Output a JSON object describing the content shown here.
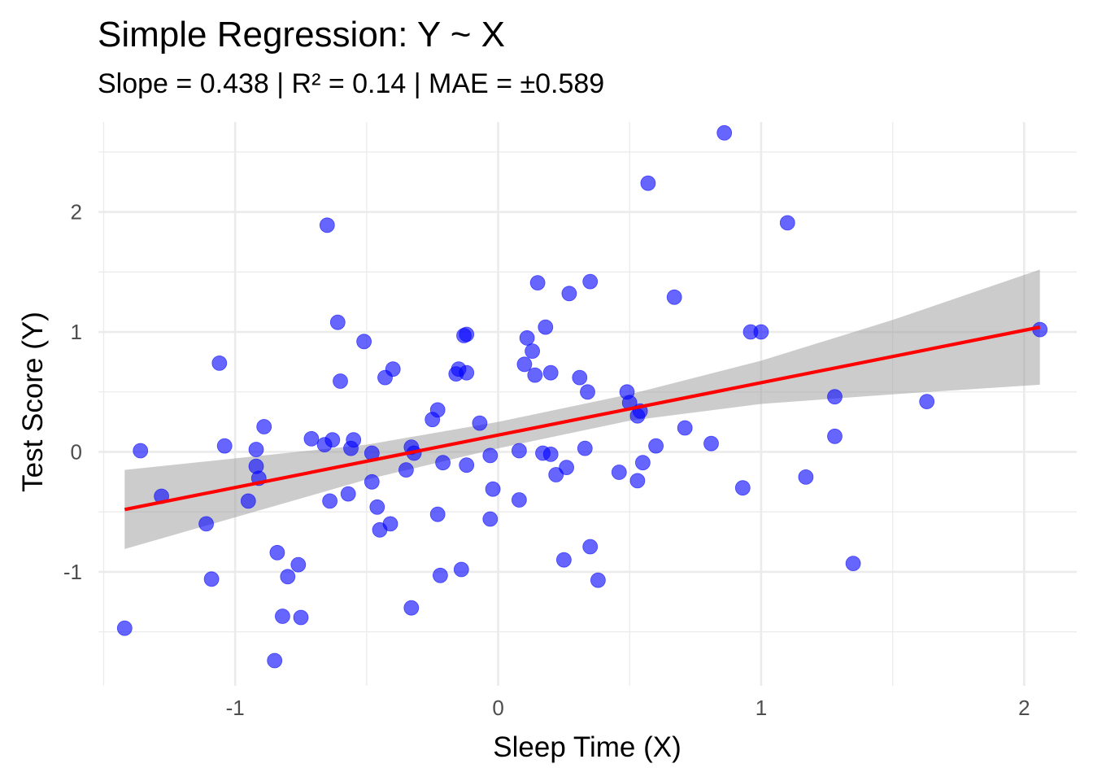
{
  "chart_data": {
    "type": "scatter",
    "title": "Simple Regression: Y ~ X",
    "subtitle": "Slope = 0.438 | R² = 0.14 | MAE = ±0.589",
    "xlabel": "Sleep Time (X)",
    "ylabel": "Test Score (Y)",
    "xlim": [
      -1.52,
      2.2
    ],
    "ylim": [
      -1.95,
      2.75
    ],
    "x_ticks": [
      -1,
      0,
      1,
      2
    ],
    "x_tick_labels": [
      "-1",
      "0",
      "1",
      "2"
    ],
    "y_ticks": [
      -1,
      0,
      1,
      2
    ],
    "y_tick_labels": [
      "-1",
      "0",
      "1",
      "2"
    ],
    "grid": true,
    "legend": "none",
    "colors": {
      "points": "#0000ff",
      "line": "#ff0000",
      "band": "#999999",
      "grid": "#ebebeb"
    },
    "regression": {
      "x": [
        -1.42,
        2.06
      ],
      "y": [
        -0.48,
        1.04
      ],
      "band_x": [
        -1.42,
        -0.5,
        0.0,
        0.5,
        1.0,
        1.5,
        2.06
      ],
      "band_lower": [
        -0.81,
        -0.23,
        0.03,
        0.26,
        0.4,
        0.48,
        0.56
      ],
      "band_upper": [
        -0.15,
        0.06,
        0.25,
        0.48,
        0.76,
        1.1,
        1.52
      ]
    },
    "points": [
      {
        "x": -1.42,
        "y": -1.47
      },
      {
        "x": -1.36,
        "y": 0.01
      },
      {
        "x": -1.28,
        "y": -0.37
      },
      {
        "x": -1.11,
        "y": -0.6
      },
      {
        "x": -1.09,
        "y": -1.06
      },
      {
        "x": -1.06,
        "y": 0.74
      },
      {
        "x": -1.04,
        "y": 0.05
      },
      {
        "x": -0.95,
        "y": -0.41
      },
      {
        "x": -0.92,
        "y": 0.02
      },
      {
        "x": -0.92,
        "y": -0.12
      },
      {
        "x": -0.91,
        "y": -0.22
      },
      {
        "x": -0.89,
        "y": 0.21
      },
      {
        "x": -0.85,
        "y": -1.74
      },
      {
        "x": -0.84,
        "y": -0.84
      },
      {
        "x": -0.82,
        "y": -1.37
      },
      {
        "x": -0.8,
        "y": -1.04
      },
      {
        "x": -0.76,
        "y": -0.94
      },
      {
        "x": -0.75,
        "y": -1.38
      },
      {
        "x": -0.71,
        "y": 0.11
      },
      {
        "x": -0.66,
        "y": 0.06
      },
      {
        "x": -0.65,
        "y": 1.89
      },
      {
        "x": -0.64,
        "y": -0.41
      },
      {
        "x": -0.63,
        "y": 0.1
      },
      {
        "x": -0.61,
        "y": 1.08
      },
      {
        "x": -0.6,
        "y": 0.59
      },
      {
        "x": -0.57,
        "y": -0.35
      },
      {
        "x": -0.56,
        "y": 0.03
      },
      {
        "x": -0.55,
        "y": 0.1
      },
      {
        "x": -0.51,
        "y": 0.92
      },
      {
        "x": -0.48,
        "y": -0.25
      },
      {
        "x": -0.48,
        "y": -0.01
      },
      {
        "x": -0.46,
        "y": -0.46
      },
      {
        "x": -0.45,
        "y": -0.65
      },
      {
        "x": -0.43,
        "y": 0.62
      },
      {
        "x": -0.41,
        "y": -0.6
      },
      {
        "x": -0.4,
        "y": 0.69
      },
      {
        "x": -0.35,
        "y": -0.15
      },
      {
        "x": -0.33,
        "y": 0.04
      },
      {
        "x": -0.33,
        "y": -1.3
      },
      {
        "x": -0.32,
        "y": -0.01
      },
      {
        "x": -0.25,
        "y": 0.27
      },
      {
        "x": -0.23,
        "y": 0.35
      },
      {
        "x": -0.23,
        "y": -0.52
      },
      {
        "x": -0.22,
        "y": -1.03
      },
      {
        "x": -0.21,
        "y": -0.09
      },
      {
        "x": -0.16,
        "y": 0.65
      },
      {
        "x": -0.15,
        "y": 0.69
      },
      {
        "x": -0.14,
        "y": -0.98
      },
      {
        "x": -0.13,
        "y": 0.97
      },
      {
        "x": -0.12,
        "y": 0.66
      },
      {
        "x": -0.12,
        "y": 0.98
      },
      {
        "x": -0.12,
        "y": -0.11
      },
      {
        "x": -0.07,
        "y": 0.24
      },
      {
        "x": -0.03,
        "y": -0.03
      },
      {
        "x": -0.03,
        "y": -0.56
      },
      {
        "x": -0.02,
        "y": -0.31
      },
      {
        "x": 0.08,
        "y": 0.01
      },
      {
        "x": 0.08,
        "y": -0.4
      },
      {
        "x": 0.1,
        "y": 0.73
      },
      {
        "x": 0.11,
        "y": 0.95
      },
      {
        "x": 0.13,
        "y": 0.84
      },
      {
        "x": 0.14,
        "y": 0.64
      },
      {
        "x": 0.15,
        "y": 1.41
      },
      {
        "x": 0.17,
        "y": -0.01
      },
      {
        "x": 0.18,
        "y": 1.04
      },
      {
        "x": 0.2,
        "y": -0.02
      },
      {
        "x": 0.2,
        "y": 0.66
      },
      {
        "x": 0.22,
        "y": -0.19
      },
      {
        "x": 0.25,
        "y": -0.9
      },
      {
        "x": 0.26,
        "y": -0.13
      },
      {
        "x": 0.27,
        "y": 1.32
      },
      {
        "x": 0.31,
        "y": 0.62
      },
      {
        "x": 0.33,
        "y": 0.03
      },
      {
        "x": 0.34,
        "y": 0.5
      },
      {
        "x": 0.35,
        "y": 1.42
      },
      {
        "x": 0.35,
        "y": -0.79
      },
      {
        "x": 0.38,
        "y": -1.07
      },
      {
        "x": 0.46,
        "y": -0.17
      },
      {
        "x": 0.49,
        "y": 0.5
      },
      {
        "x": 0.5,
        "y": 0.41
      },
      {
        "x": 0.53,
        "y": 0.3
      },
      {
        "x": 0.53,
        "y": -0.24
      },
      {
        "x": 0.54,
        "y": 0.34
      },
      {
        "x": 0.55,
        "y": -0.09
      },
      {
        "x": 0.57,
        "y": 2.24
      },
      {
        "x": 0.6,
        "y": 0.05
      },
      {
        "x": 0.67,
        "y": 1.29
      },
      {
        "x": 0.71,
        "y": 0.2
      },
      {
        "x": 0.81,
        "y": 0.07
      },
      {
        "x": 0.86,
        "y": 2.66
      },
      {
        "x": 0.93,
        "y": -0.3
      },
      {
        "x": 0.96,
        "y": 1.0
      },
      {
        "x": 1.0,
        "y": 1.0
      },
      {
        "x": 1.1,
        "y": 1.91
      },
      {
        "x": 1.17,
        "y": -0.21
      },
      {
        "x": 1.28,
        "y": 0.46
      },
      {
        "x": 1.28,
        "y": 0.13
      },
      {
        "x": 1.35,
        "y": -0.93
      },
      {
        "x": 1.63,
        "y": 0.42
      },
      {
        "x": 2.06,
        "y": 1.02
      }
    ]
  }
}
